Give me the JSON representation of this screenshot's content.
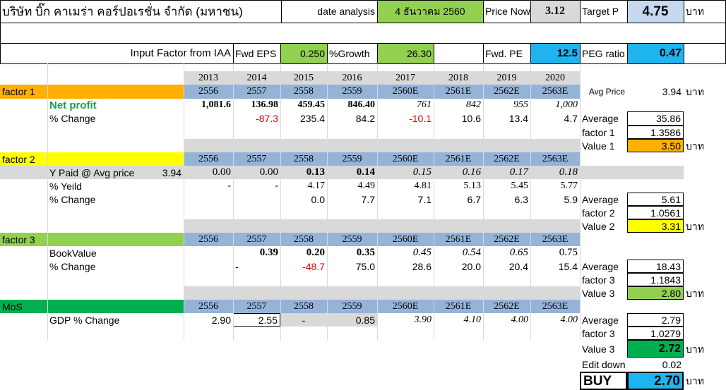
{
  "header": {
    "company": "บริษัท บิ๊ก คาเมร่า คอร์ปอเรชั่น จำกัด (มหาชน)",
    "date_label": "date analysis",
    "date_value": "4 ธันวาคม 2560",
    "price_now_label": "Price Now",
    "price_now_value": "3.12",
    "target_label": "Target P",
    "target_value": "4.75",
    "currency": "บาท"
  },
  "inputs": {
    "label": "Input Factor from IAA",
    "fwd_eps_label": "Fwd  EPS",
    "fwd_eps_value": "0.250",
    "growth_label": "%Growth",
    "growth_value": "26.30",
    "fwd_pe_label": "Fwd. PE",
    "fwd_pe_value": "12.5",
    "peg_label": "PEG ratio",
    "peg_value": "0.47"
  },
  "years_ad": [
    "2013",
    "2014",
    "2015",
    "2016",
    "2017",
    "2018",
    "2019",
    "2020"
  ],
  "factor1": {
    "label": "factor 1",
    "years": [
      "2556",
      "2557",
      "2558",
      "2559",
      "2560E",
      "2561E",
      "2562E",
      "2563E"
    ],
    "avg_price_label": "Avg Price",
    "avg_price_value": "3.94",
    "avg_price_unit": "บาท",
    "net_profit_label": "Net profit",
    "net_profit": [
      "1,081.6",
      "136.98",
      "459.45",
      "846.40",
      "761",
      "842",
      "955",
      "1,000"
    ],
    "pct_change_label": "% Change",
    "pct_change": [
      "",
      "-87.3",
      "235.4",
      "84.2",
      "-10.1",
      "10.6",
      "13.4",
      "4.7"
    ],
    "average_label": "Average",
    "average_value": "35.86",
    "factor_label": "factor 1",
    "factor_value": "1.3586",
    "value_label": "Value 1",
    "value_value": "3.50",
    "value_unit": "บาท"
  },
  "factor2": {
    "label": "factor 2",
    "years": [
      "2556",
      "2557",
      "2558",
      "2559",
      "2560E",
      "2561E",
      "2562E",
      "2563E"
    ],
    "y_paid_label": "Y Paid @ Avg price",
    "y_paid_price": "3.94",
    "y_paid": [
      "0.00",
      "0.00",
      "0.13",
      "0.14",
      "0.15",
      "0.16",
      "0.17",
      "0.18"
    ],
    "yield_label": "% Yeild",
    "yield": [
      "-",
      "-",
      "4.17",
      "4.49",
      "4.81",
      "5.13",
      "5.45",
      "5.77"
    ],
    "pct_change_label": "% Change",
    "pct_change": [
      "",
      "",
      "0.0",
      "7.7",
      "7.1",
      "6.7",
      "6.3",
      "5.9"
    ],
    "average_label": "Average",
    "average_value": "5.61",
    "factor_label": "factor 2",
    "factor_value": "1.0561",
    "value_label": "Value 2",
    "value_value": "3.31",
    "value_unit": "บาท"
  },
  "factor3": {
    "label": "factor 3",
    "years": [
      "2556",
      "2557",
      "2558",
      "2559",
      "2560E",
      "2561E",
      "2562E",
      "2563E"
    ],
    "bookvalue_label": "BookValue",
    "bookvalue": [
      "",
      "0.39",
      "0.20",
      "0.35",
      "0.45",
      "0.54",
      "0.65",
      "0.75"
    ],
    "pct_change_label": "% Change",
    "pct_change": [
      "",
      "-",
      "-48.7",
      "75.0",
      "28.6",
      "20.0",
      "20.4",
      "15.4"
    ],
    "average_label": "Average",
    "average_value": "18.43",
    "factor_label": "factor 3",
    "factor_value": "1.1843",
    "value_label": "Value 3",
    "value_value": "2.80",
    "value_unit": "บาท"
  },
  "mos": {
    "label": "MoS",
    "years": [
      "2556",
      "2557",
      "2558",
      "2559",
      "2560E",
      "2561E",
      "2562E",
      "2563E"
    ],
    "gdp_label": "GDP % Change",
    "gdp": [
      "2.90",
      "2.55",
      "-",
      "0.85",
      "3.90",
      "4.10",
      "4.00",
      "4.00"
    ],
    "average_label": "Average",
    "average_value": "2.79",
    "factor_label": "factor 3",
    "factor_value": "1.0279",
    "value_label": "Value 3",
    "value_value": "2.72",
    "value_unit": "บาท",
    "edit_down_label": "Edit down",
    "edit_down_value": "0.02"
  },
  "result": {
    "label": "BUY",
    "value": "2.70",
    "unit": "บาท"
  },
  "colors": {
    "header_blue": "#95b3d7",
    "gray": "#d9d9d9",
    "orange": "#ffb000",
    "yellow": "#ffff00",
    "light_green": "#92d050",
    "dark_green": "#00b050",
    "cyan": "#1fb4ef",
    "light_blue": "#c6d9f1",
    "red": "#e00000",
    "net_profit_green": "#16a34a"
  }
}
